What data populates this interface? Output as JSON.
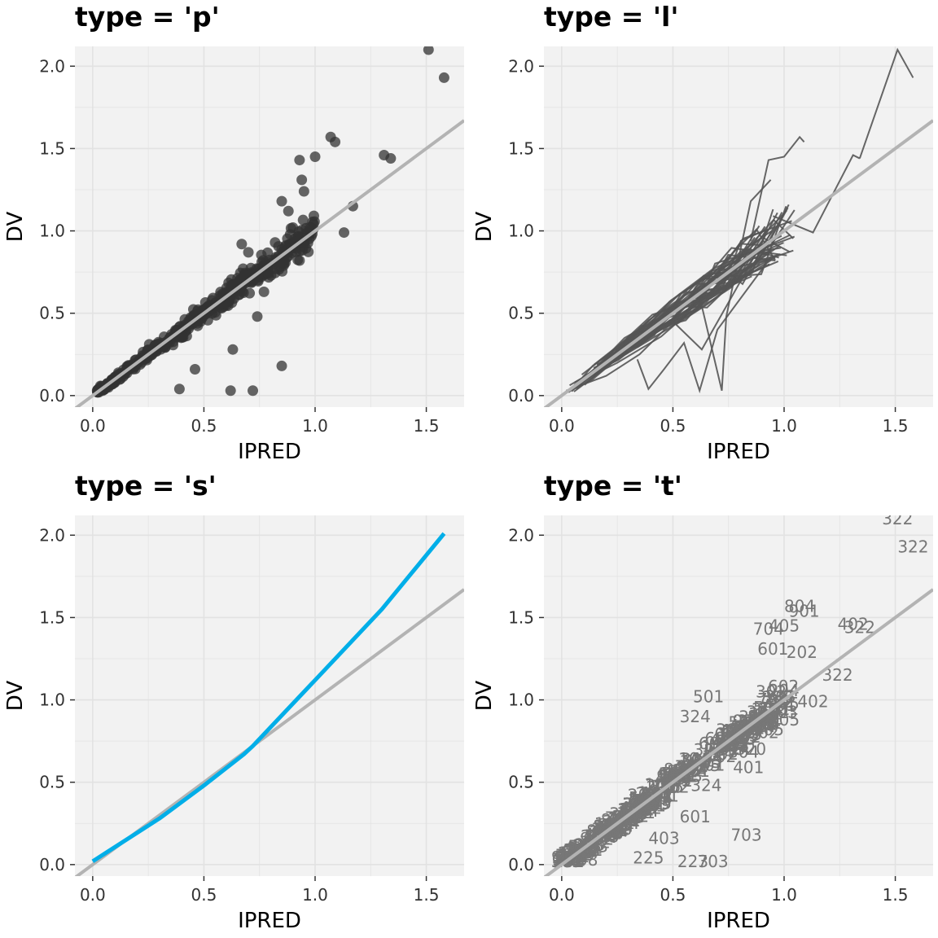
{
  "colors": {
    "panel_bg": "#f2f2f2",
    "grid": "#e2e2e2",
    "point": "#333333",
    "line": "#555555",
    "identity": "#b3b3b3",
    "smooth": "#00aee8",
    "text_mark": "#777777"
  },
  "chart_data": [
    {
      "type": "scatter",
      "title": "type = 'p'",
      "xlabel": "IPRED",
      "ylabel": "DV",
      "xlim": [
        -0.08,
        1.67
      ],
      "ylim": [
        -0.07,
        2.12
      ],
      "xticks": [
        "0.0",
        "0.5",
        "1.0",
        "1.5"
      ],
      "yticks": [
        "0.0",
        "0.5",
        "1.0",
        "1.5",
        "2.0"
      ],
      "grid": true,
      "reference_line": "identity",
      "points": [
        [
          1.51,
          2.1
        ],
        [
          1.58,
          1.93
        ],
        [
          1.31,
          1.46
        ],
        [
          1.34,
          1.44
        ],
        [
          1.07,
          1.57
        ],
        [
          1.09,
          1.54
        ],
        [
          1.0,
          1.45
        ],
        [
          0.93,
          1.43
        ],
        [
          0.94,
          1.31
        ],
        [
          0.95,
          1.24
        ],
        [
          1.17,
          1.15
        ],
        [
          1.13,
          0.99
        ],
        [
          0.93,
          0.82
        ],
        [
          0.84,
          0.78
        ],
        [
          0.85,
          0.18
        ],
        [
          0.72,
          0.03
        ],
        [
          0.62,
          0.03
        ],
        [
          0.63,
          0.28
        ],
        [
          0.39,
          0.04
        ],
        [
          0.46,
          0.16
        ],
        [
          0.02,
          0.03
        ],
        [
          0.67,
          0.92
        ],
        [
          0.7,
          0.87
        ],
        [
          0.77,
          0.63
        ],
        [
          0.79,
          0.74
        ],
        [
          0.85,
          1.18
        ],
        [
          0.88,
          1.12
        ],
        [
          0.82,
          0.93
        ],
        [
          0.9,
          1.02
        ],
        [
          0.74,
          0.48
        ]
      ]
    },
    {
      "type": "line",
      "title": "type = 'l'",
      "xlabel": "IPRED",
      "ylabel": "DV",
      "xlim": [
        -0.08,
        1.67
      ],
      "ylim": [
        -0.07,
        2.12
      ],
      "xticks": [
        "0.0",
        "0.5",
        "1.0",
        "1.5"
      ],
      "yticks": [
        "0.0",
        "0.5",
        "1.0",
        "1.5",
        "2.0"
      ],
      "grid": true,
      "reference_line": "identity",
      "series": [
        {
          "points": [
            [
              1.34,
              1.44
            ],
            [
              1.51,
              2.1
            ],
            [
              1.58,
              1.93
            ]
          ]
        },
        {
          "points": [
            [
              0.95,
              1.09
            ],
            [
              1.13,
              0.99
            ],
            [
              1.31,
              1.46
            ],
            [
              1.34,
              1.44
            ]
          ]
        },
        {
          "points": [
            [
              0.85,
              0.94
            ],
            [
              0.93,
              1.43
            ],
            [
              1.0,
              1.45
            ],
            [
              1.07,
              1.57
            ],
            [
              1.09,
              1.54
            ]
          ]
        },
        {
          "points": [
            [
              0.62,
              0.6
            ],
            [
              0.72,
              0.03
            ],
            [
              0.74,
              0.48
            ],
            [
              0.85,
              1.18
            ],
            [
              0.94,
              1.31
            ]
          ]
        },
        {
          "points": [
            [
              0.34,
              0.22
            ],
            [
              0.39,
              0.04
            ],
            [
              0.46,
              0.16
            ],
            [
              0.55,
              0.32
            ],
            [
              0.62,
              0.03
            ],
            [
              0.7,
              0.4
            ],
            [
              0.93,
              0.82
            ]
          ]
        },
        {
          "points": [
            [
              0.02,
              0.03
            ],
            [
              0.2,
              0.12
            ],
            [
              0.35,
              0.25
            ],
            [
              0.5,
              0.45
            ],
            [
              0.63,
              0.28
            ],
            [
              0.84,
              0.78
            ],
            [
              0.97,
              1.11
            ]
          ]
        }
      ]
    },
    {
      "type": "line",
      "title": "type = 's'",
      "xlabel": "IPRED",
      "ylabel": "DV",
      "xlim": [
        -0.08,
        1.67
      ],
      "ylim": [
        -0.07,
        2.12
      ],
      "xticks": [
        "0.0",
        "0.5",
        "1.0",
        "1.5"
      ],
      "yticks": [
        "0.0",
        "0.5",
        "1.0",
        "1.5",
        "2.0"
      ],
      "grid": true,
      "reference_line": "identity",
      "series": [
        {
          "points": [
            [
              0.0,
              0.02
            ],
            [
              0.3,
              0.28
            ],
            [
              0.5,
              0.48
            ],
            [
              0.68,
              0.67
            ],
            [
              0.72,
              0.72
            ],
            [
              1.0,
              1.12
            ],
            [
              1.3,
              1.55
            ],
            [
              1.58,
              2.01
            ]
          ]
        }
      ]
    },
    {
      "type": "scatter",
      "title": "type = 't'",
      "xlabel": "IPRED",
      "ylabel": "DV",
      "xlim": [
        -0.08,
        1.67
      ],
      "ylim": [
        -0.07,
        2.12
      ],
      "xticks": [
        "0.0",
        "0.5",
        "1.0",
        "1.5"
      ],
      "yticks": [
        "0.0",
        "0.5",
        "1.0",
        "1.5",
        "2.0"
      ],
      "grid": true,
      "reference_line": "identity",
      "text_labels": [
        {
          "x": 1.51,
          "y": 2.1,
          "label": "322"
        },
        {
          "x": 1.58,
          "y": 1.93,
          "label": "322"
        },
        {
          "x": 1.07,
          "y": 1.57,
          "label": "804"
        },
        {
          "x": 1.09,
          "y": 1.54,
          "label": "901"
        },
        {
          "x": 1.31,
          "y": 1.46,
          "label": "402"
        },
        {
          "x": 1.34,
          "y": 1.44,
          "label": "322"
        },
        {
          "x": 1.0,
          "y": 1.45,
          "label": "405"
        },
        {
          "x": 0.93,
          "y": 1.43,
          "label": "704"
        },
        {
          "x": 0.95,
          "y": 1.31,
          "label": "601"
        },
        {
          "x": 1.08,
          "y": 1.29,
          "label": "202"
        },
        {
          "x": 1.24,
          "y": 1.15,
          "label": "322"
        },
        {
          "x": 1.13,
          "y": 0.99,
          "label": "402"
        },
        {
          "x": 1.0,
          "y": 0.88,
          "label": "405"
        },
        {
          "x": 0.93,
          "y": 0.82,
          "label": "305"
        },
        {
          "x": 0.85,
          "y": 0.7,
          "label": "320"
        },
        {
          "x": 0.84,
          "y": 0.59,
          "label": "401"
        },
        {
          "x": 0.65,
          "y": 0.48,
          "label": "324"
        },
        {
          "x": 0.6,
          "y": 0.29,
          "label": "601"
        },
        {
          "x": 0.83,
          "y": 0.18,
          "label": "703"
        },
        {
          "x": 0.68,
          "y": 0.02,
          "label": "703"
        },
        {
          "x": 0.59,
          "y": 0.02,
          "label": "223"
        },
        {
          "x": 0.39,
          "y": 0.04,
          "label": "225"
        },
        {
          "x": 0.46,
          "y": 0.16,
          "label": "403"
        },
        {
          "x": 0.66,
          "y": 1.02,
          "label": "501"
        },
        {
          "x": 0.6,
          "y": 0.9,
          "label": "324"
        },
        {
          "x": 0.07,
          "y": 0.03,
          "label": "4158"
        }
      ]
    }
  ]
}
